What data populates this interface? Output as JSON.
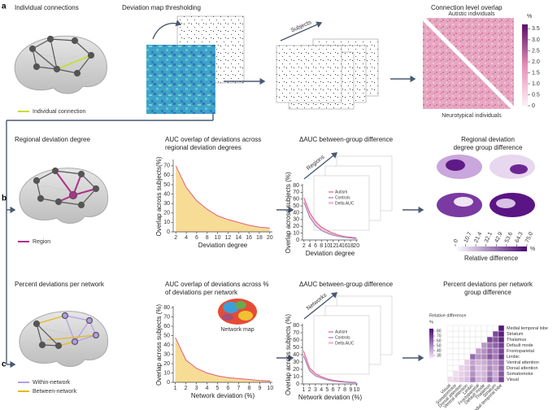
{
  "panel_a": {
    "label": "a",
    "title_connections": "Individual connections",
    "legend_connection": "Individual connection",
    "title_thresholding": "Deviation map thresholding",
    "subjects": "Subjects",
    "title_overlap": "Connection level overlap",
    "upper_label": "Autistic individuals",
    "lower_label": "Neurotypical individuals",
    "colorbar": {
      "unit": "%",
      "lim": [
        0,
        3.7
      ],
      "ticks": [
        0,
        0.5,
        {
          "value": 1,
          "label": "1.0"
        },
        1.5,
        {
          "value": 2,
          "label": "2.0"
        },
        2.5,
        {
          "value": 3,
          "label": "3.0"
        },
        3.5
      ]
    }
  },
  "panel_b": {
    "label": "b",
    "title_degree": "Regional deviation degree",
    "legend_region": "Region",
    "auc": {
      "type": "area",
      "title": [
        "AUC overlap of deviations across",
        "regional deviation degrees"
      ],
      "y_label": "Overlap across subjects(%)",
      "x_label": "Deviation degree",
      "x": [
        2,
        4,
        6,
        8,
        10,
        12,
        14,
        16,
        18,
        20
      ],
      "values": [
        70,
        47,
        33,
        24,
        17,
        13,
        10,
        7,
        5,
        4
      ],
      "color": "#f7dc96",
      "line_color": "#e0607e",
      "xlim": [
        1.5,
        20.5
      ],
      "ylim": [
        0,
        75
      ],
      "xticks": [
        2,
        4,
        6,
        8,
        10,
        12,
        14,
        16,
        18,
        20
      ],
      "yticks": [
        0,
        10,
        20,
        30,
        40,
        50,
        60,
        70
      ]
    },
    "delta": {
      "type": "line",
      "title": "ΔAUC between-group difference",
      "stack_label": "Regions",
      "y_label": "Overlap across subjects (%)",
      "x_label": "Deviation degree",
      "x": [
        2,
        4,
        6,
        8,
        10,
        12,
        14,
        16,
        18,
        20
      ],
      "series": [
        {
          "name": "Autism",
          "color": "#e0607e",
          "values": [
            62,
            40,
            27,
            19,
            14,
            10,
            7,
            5,
            4,
            3
          ]
        },
        {
          "name": "Controls",
          "color": "#9a7cc8",
          "values": [
            55,
            33,
            21,
            14,
            10,
            7,
            5,
            4,
            3,
            2
          ]
        }
      ],
      "delta_name": "Delta AUC",
      "delta_color": "#f3c4d2",
      "xlim": [
        1.5,
        20.5
      ],
      "ylim": [
        0,
        80
      ],
      "xticks": [
        2,
        4,
        6,
        8,
        10,
        12,
        14,
        16,
        18,
        20
      ],
      "yticks": [
        0,
        10,
        20,
        30,
        40,
        50,
        60,
        70,
        80
      ]
    },
    "map": {
      "title": [
        "Regional deviation",
        "degree group difference"
      ],
      "colorbar_label": "Relative difference",
      "unit": "%",
      "lim": [
        0,
        75
      ],
      "ticks": [
        0,
        10.7,
        21.4,
        32.1,
        42.9,
        53.6,
        64.3,
        {
          "value": 75,
          "label": "75.0"
        }
      ]
    }
  },
  "panel_c": {
    "label": "c",
    "title_network": "Percent deviations per network",
    "legend_within": "Within-network",
    "legend_between": "Between-network",
    "network_map": "Network map",
    "auc": {
      "type": "area",
      "title": [
        "AUC overlap of deviations across %",
        "of deviations per network"
      ],
      "y_label": "Overlap across subjects (%)",
      "x_label": "Network deviation (%)",
      "x": [
        1,
        2,
        3,
        4,
        5,
        6,
        7,
        8,
        9,
        10
      ],
      "values": [
        48,
        24,
        15,
        10,
        7,
        5,
        4,
        3,
        2,
        1.5
      ],
      "color": "#f7dc96",
      "line_color": "#e0607e",
      "xlim": [
        0.8,
        10.2
      ],
      "ylim": [
        0,
        80
      ],
      "xticks": [
        1,
        2,
        3,
        4,
        5,
        6,
        7,
        8,
        9,
        10
      ],
      "yticks": [
        0,
        10,
        20,
        30,
        40,
        50,
        60,
        70,
        80
      ]
    },
    "delta": {
      "type": "line",
      "title": "ΔAUC between-group difference",
      "stack_label": "Networks",
      "y_label": "Overlap across subjects (%)",
      "x_label": "Network deviation (%)",
      "x": [
        1,
        2,
        3,
        4,
        5,
        6,
        7,
        8,
        9,
        10
      ],
      "series": [
        {
          "name": "Autism",
          "color": "#e0607e",
          "values": [
            45,
            22,
            14,
            10,
            7,
            5,
            4,
            3,
            2.5,
            2
          ]
        },
        {
          "name": "Controls",
          "color": "#9a7cc8",
          "values": [
            38,
            18,
            11,
            8,
            5.5,
            4,
            3,
            2.5,
            2,
            1.5
          ]
        }
      ],
      "delta_name": "Delta AUC",
      "delta_color": "#f3c4d2",
      "xlim": [
        0.8,
        10.2
      ],
      "ylim": [
        0,
        80
      ],
      "xticks": [
        1,
        2,
        3,
        4,
        5,
        6,
        7,
        8,
        9,
        10
      ],
      "yticks": [
        0,
        10,
        20,
        30,
        40,
        50,
        60,
        70,
        80
      ]
    },
    "heatmap": {
      "title": [
        "Percent deviations per network",
        "group difference"
      ],
      "colorbar_label": "Relative difference",
      "unit": "%",
      "lim": [
        25,
        85
      ],
      "ticks": [
        30,
        40,
        50,
        60,
        70,
        80
      ],
      "networks": [
        "Visual",
        "Somatomotor",
        "Dorsal attention",
        "Ventral attention",
        "Limbic",
        "Frontoparietal",
        "Default mode",
        "Thalamus",
        "Striatum",
        "Medial temporal lobe"
      ],
      "values": [
        [
          30,
          32,
          35,
          38,
          55,
          40,
          42,
          60,
          45,
          70
        ],
        [
          null,
          30,
          33,
          36,
          50,
          38,
          40,
          55,
          42,
          65
        ],
        [
          null,
          null,
          32,
          35,
          48,
          37,
          40,
          52,
          45,
          62
        ],
        [
          null,
          null,
          null,
          34,
          45,
          40,
          42,
          50,
          48,
          60
        ],
        [
          null,
          null,
          null,
          null,
          60,
          50,
          52,
          65,
          55,
          75
        ],
        [
          null,
          null,
          null,
          null,
          null,
          45,
          50,
          60,
          55,
          70
        ],
        [
          null,
          null,
          null,
          null,
          null,
          null,
          48,
          58,
          62,
          72
        ],
        [
          null,
          null,
          null,
          null,
          null,
          null,
          null,
          70,
          65,
          78
        ],
        [
          null,
          null,
          null,
          null,
          null,
          null,
          null,
          null,
          68,
          80
        ],
        [
          null,
          null,
          null,
          null,
          null,
          null,
          null,
          null,
          null,
          82
        ]
      ]
    }
  }
}
